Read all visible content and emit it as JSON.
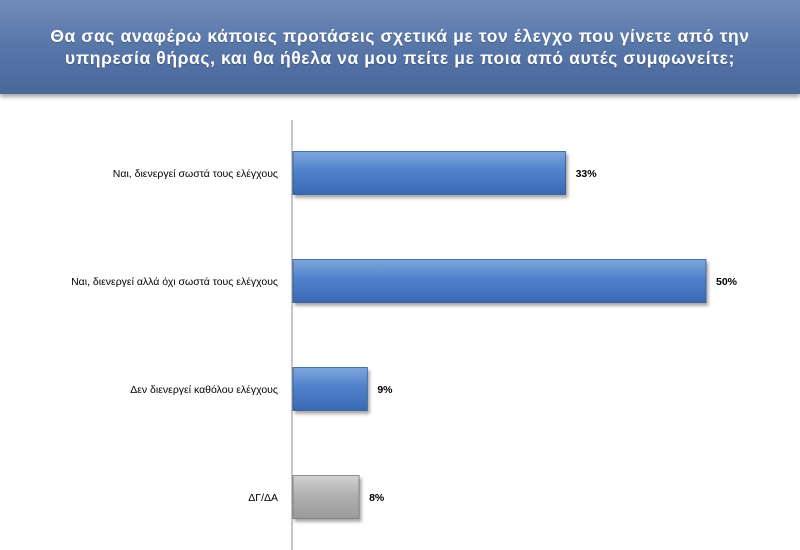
{
  "header": {
    "title": "Θα σας αναφέρω κάποιες προτάσεις σχετικά με τον έλεγχο που γίνετε από την υπηρεσία θήρας, και θα ήθελα να μου πείτε με ποια από αυτές συμφωνείτε;"
  },
  "chart_data": {
    "type": "bar",
    "orientation": "horizontal",
    "title": "Θα σας αναφέρω κάποιες προτάσεις σχετικά με τον έλεγχο που γίνετε από την υπηρεσία θήρας, και θα ήθελα να μου πείτε με ποια από αυτές συμφωνείτε;",
    "categories": [
      "Ναι, διενεργεί σωστά τους ελέγχους",
      "Ναι, διενεργεί αλλά όχι σωστά τους ελέγχους",
      "Δεν διενεργεί καθόλου ελέγχους",
      "ΔΓ/ΔΑ"
    ],
    "values": [
      33,
      50,
      9,
      8
    ],
    "value_labels": [
      "33%",
      "50%",
      "9%",
      "8%"
    ],
    "unit": "%",
    "xlim": [
      0,
      60
    ],
    "grid": false,
    "colors": {
      "bar": "#4a7cc7",
      "bar_highlight": "#7fa6dc",
      "bar_edge": "#2f5a98",
      "bar_neutral": "#a8a8a8",
      "bar_neutral_highlight": "#d2d2d2",
      "bar_neutral_edge": "#7a7a7a",
      "header": "#5574a7"
    },
    "neutral_category": "ΔΓ/ΔΑ"
  }
}
